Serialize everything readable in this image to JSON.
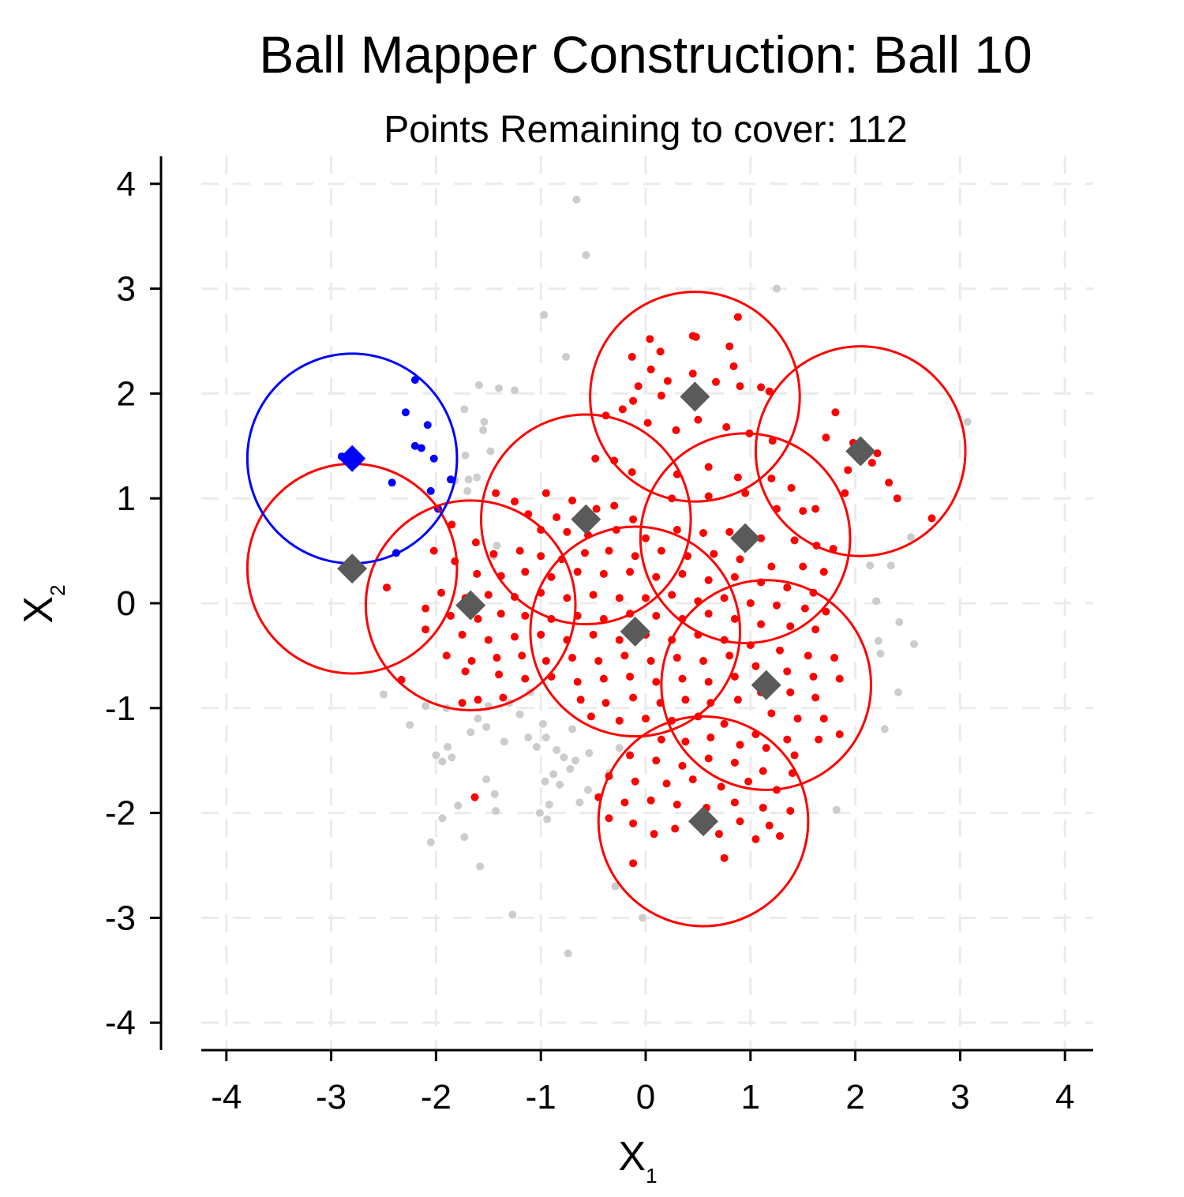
{
  "chart_data": {
    "type": "scatter",
    "title": "Ball Mapper Construction: Ball 10",
    "subtitle": "Points Remaining to cover: 112",
    "xlabel_main": "X",
    "xlabel_sub": "1",
    "ylabel_main": "X",
    "ylabel_sub": "2",
    "xlim": [
      -4.25,
      4.25
    ],
    "ylim": [
      -4.25,
      4.25
    ],
    "xticks": [
      -4,
      -3,
      -2,
      -1,
      0,
      1,
      2,
      3,
      4
    ],
    "yticks": [
      -4,
      -3,
      -2,
      -1,
      0,
      1,
      2,
      3,
      4
    ],
    "xtick_labels": [
      "-4",
      "-3",
      "-2",
      "-1",
      "0",
      "1",
      "2",
      "3",
      "4"
    ],
    "ytick_labels": [
      "-4",
      "-3",
      "-2",
      "-1",
      "0",
      "1",
      "2",
      "3",
      "4"
    ],
    "grid": true,
    "ball_radius": 1.0,
    "colors": {
      "uncovered": "#cccccc",
      "covered": "#ff0000",
      "current": "#0000ff",
      "center": "#5a5a5a",
      "grid": "#ebebeb",
      "axis": "#000000"
    },
    "centers": [
      {
        "x": -0.1,
        "y": -0.27
      },
      {
        "x": -0.57,
        "y": 0.8
      },
      {
        "x": 0.47,
        "y": 1.97
      },
      {
        "x": 0.95,
        "y": 0.62
      },
      {
        "x": 1.15,
        "y": -0.78
      },
      {
        "x": 0.55,
        "y": -2.08
      },
      {
        "x": 2.05,
        "y": 1.45
      },
      {
        "x": -1.67,
        "y": -0.02
      },
      {
        "x": -2.8,
        "y": 0.33
      }
    ],
    "current_ball": {
      "x": -2.8,
      "y": 1.38
    },
    "blue_points": [
      [
        -2.2,
        2.13
      ],
      [
        -2.29,
        1.82
      ],
      [
        -2.08,
        1.7
      ],
      [
        -2.2,
        1.5
      ],
      [
        -2.14,
        1.48
      ],
      [
        -2.02,
        1.38
      ],
      [
        -1.86,
        1.18
      ],
      [
        -2.42,
        1.15
      ],
      [
        -2.05,
        1.07
      ],
      [
        -1.98,
        0.9
      ],
      [
        -2.38,
        0.48
      ],
      [
        -2.9,
        1.4
      ],
      [
        -2.75,
        1.35
      ]
    ],
    "gray_points": [
      [
        -0.66,
        3.85
      ],
      [
        -0.57,
        3.32
      ],
      [
        1.25,
        3.0
      ],
      [
        -0.97,
        2.75
      ],
      [
        -0.76,
        2.35
      ],
      [
        -1.59,
        2.08
      ],
      [
        -1.4,
        2.05
      ],
      [
        -1.25,
        2.03
      ],
      [
        -1.73,
        1.85
      ],
      [
        -1.54,
        1.73
      ],
      [
        -1.72,
        1.41
      ],
      [
        -1.82,
        1.17
      ],
      [
        -1.61,
        1.2
      ],
      [
        -1.7,
        1.07
      ],
      [
        -1.69,
        1.18
      ],
      [
        3.07,
        1.73
      ],
      [
        2.53,
        0.63
      ],
      [
        2.34,
        0.36
      ],
      [
        2.14,
        0.36
      ],
      [
        2.2,
        0.02
      ],
      [
        2.42,
        -0.18
      ],
      [
        2.56,
        -0.39
      ],
      [
        2.22,
        -0.36
      ],
      [
        2.24,
        -0.48
      ],
      [
        2.41,
        -0.85
      ],
      [
        2.28,
        -1.2
      ],
      [
        1.82,
        -1.97
      ],
      [
        -2.5,
        -0.87
      ],
      [
        -2.25,
        -1.16
      ],
      [
        -2.0,
        -1.45
      ],
      [
        -1.89,
        -1.37
      ],
      [
        -1.94,
        -1.51
      ],
      [
        -1.85,
        -1.47
      ],
      [
        -1.67,
        -1.23
      ],
      [
        -1.52,
        -1.18
      ],
      [
        -1.35,
        -1.32
      ],
      [
        -1.2,
        -1.06
      ],
      [
        -1.12,
        -1.28
      ],
      [
        -1.04,
        -1.37
      ],
      [
        -0.95,
        -1.28
      ],
      [
        -0.85,
        -1.4
      ],
      [
        -0.78,
        -1.47
      ],
      [
        -0.67,
        -1.5
      ],
      [
        -0.54,
        -1.43
      ],
      [
        -0.88,
        -1.63
      ],
      [
        -0.96,
        -1.7
      ],
      [
        -0.82,
        -1.73
      ],
      [
        -0.72,
        -1.58
      ],
      [
        -0.55,
        -1.78
      ],
      [
        -0.63,
        -1.9
      ],
      [
        -0.92,
        -1.92
      ],
      [
        -1.52,
        -1.68
      ],
      [
        -1.44,
        -1.82
      ],
      [
        -1.43,
        -1.98
      ],
      [
        -1.79,
        -1.93
      ],
      [
        -1.94,
        -2.05
      ],
      [
        -2.05,
        -2.28
      ],
      [
        -1.73,
        -2.23
      ],
      [
        -1.58,
        -2.51
      ],
      [
        -1.01,
        -2.0
      ],
      [
        -0.94,
        -2.06
      ],
      [
        -1.27,
        -2.97
      ],
      [
        -0.74,
        -3.34
      ],
      [
        -0.29,
        -2.7
      ],
      [
        -0.03,
        -3.0
      ],
      [
        -0.35,
        -1.62
      ],
      [
        -0.25,
        -1.38
      ],
      [
        -1.1,
        -0.85
      ],
      [
        -1.3,
        -0.95
      ],
      [
        -1.5,
        -0.98
      ],
      [
        -1.6,
        -1.1
      ],
      [
        -0.98,
        -1.15
      ],
      [
        -0.7,
        -1.2
      ],
      [
        -1.9,
        -1.0
      ],
      [
        -2.1,
        -0.98
      ],
      [
        -1.45,
        0.45
      ],
      [
        -1.42,
        0.55
      ],
      [
        -1.48,
        1.45
      ],
      [
        -1.55,
        1.65
      ]
    ],
    "red_points": [
      [
        0.04,
        2.52
      ],
      [
        0.45,
        2.55
      ],
      [
        0.48,
        2.54
      ],
      [
        0.88,
        2.73
      ],
      [
        0.8,
        2.45
      ],
      [
        0.45,
        2.19
      ],
      [
        0.14,
        2.4
      ],
      [
        -0.13,
        2.35
      ],
      [
        0.05,
        2.23
      ],
      [
        0.84,
        2.26
      ],
      [
        0.21,
        2.12
      ],
      [
        0.67,
        2.11
      ],
      [
        0.9,
        2.07
      ],
      [
        1.1,
        2.06
      ],
      [
        1.18,
        2.02
      ],
      [
        0.15,
        1.98
      ],
      [
        -0.07,
        2.07
      ],
      [
        -0.12,
        1.93
      ],
      [
        -0.38,
        1.79
      ],
      [
        -0.22,
        1.85
      ],
      [
        0.02,
        1.72
      ],
      [
        0.29,
        1.65
      ],
      [
        0.5,
        1.75
      ],
      [
        0.77,
        1.68
      ],
      [
        0.99,
        1.62
      ],
      [
        1.21,
        1.55
      ],
      [
        -0.48,
        1.38
      ],
      [
        -0.3,
        1.36
      ],
      [
        -0.13,
        1.25
      ],
      [
        0.3,
        1.23
      ],
      [
        0.6,
        1.3
      ],
      [
        0.88,
        1.2
      ],
      [
        1.2,
        1.19
      ],
      [
        1.39,
        1.1
      ],
      [
        -0.95,
        1.05
      ],
      [
        -0.7,
        0.98
      ],
      [
        -0.47,
        0.9
      ],
      [
        -0.3,
        0.93
      ],
      [
        -0.12,
        0.8
      ],
      [
        0.25,
        1.0
      ],
      [
        0.6,
        1.02
      ],
      [
        0.95,
        1.05
      ],
      [
        1.25,
        0.9
      ],
      [
        1.5,
        0.88
      ],
      [
        1.62,
        0.9
      ],
      [
        -1.43,
        1.05
      ],
      [
        -1.25,
        0.97
      ],
      [
        -1.12,
        0.85
      ],
      [
        -0.85,
        0.82
      ],
      [
        -1.0,
        0.7
      ],
      [
        -0.75,
        0.68
      ],
      [
        -0.55,
        0.65
      ],
      [
        -0.28,
        0.7
      ],
      [
        0.0,
        0.62
      ],
      [
        0.3,
        0.7
      ],
      [
        0.55,
        0.67
      ],
      [
        0.8,
        0.68
      ],
      [
        1.1,
        0.62
      ],
      [
        1.42,
        0.6
      ],
      [
        1.63,
        0.55
      ],
      [
        1.79,
        0.52
      ],
      [
        -1.85,
        0.75
      ],
      [
        -1.62,
        0.58
      ],
      [
        -1.45,
        0.47
      ],
      [
        -1.2,
        0.5
      ],
      [
        -1.0,
        0.45
      ],
      [
        -0.8,
        0.42
      ],
      [
        -0.58,
        0.48
      ],
      [
        -0.35,
        0.5
      ],
      [
        -0.1,
        0.45
      ],
      [
        0.15,
        0.5
      ],
      [
        0.4,
        0.45
      ],
      [
        0.65,
        0.47
      ],
      [
        0.9,
        0.42
      ],
      [
        1.2,
        0.35
      ],
      [
        1.5,
        0.35
      ],
      [
        1.7,
        0.3
      ],
      [
        -2.02,
        0.5
      ],
      [
        -1.82,
        0.4
      ],
      [
        -1.61,
        0.28
      ],
      [
        -1.38,
        0.26
      ],
      [
        -1.15,
        0.3
      ],
      [
        -0.9,
        0.25
      ],
      [
        -0.65,
        0.3
      ],
      [
        -0.4,
        0.28
      ],
      [
        -0.15,
        0.3
      ],
      [
        0.1,
        0.25
      ],
      [
        0.35,
        0.28
      ],
      [
        0.6,
        0.22
      ],
      [
        0.85,
        0.25
      ],
      [
        1.1,
        0.2
      ],
      [
        1.35,
        0.15
      ],
      [
        1.6,
        0.1
      ],
      [
        -2.47,
        0.15
      ],
      [
        -1.95,
        0.1
      ],
      [
        -1.72,
        0.05
      ],
      [
        -1.5,
        0.08
      ],
      [
        -1.25,
        0.06
      ],
      [
        -1.0,
        0.1
      ],
      [
        -0.75,
        0.05
      ],
      [
        -0.5,
        0.08
      ],
      [
        -0.25,
        0.05
      ],
      [
        0.0,
        0.05
      ],
      [
        0.25,
        0.08
      ],
      [
        0.5,
        0.02
      ],
      [
        0.75,
        0.05
      ],
      [
        1.0,
        0.0
      ],
      [
        1.25,
        -0.02
      ],
      [
        1.52,
        -0.05
      ],
      [
        1.72,
        -0.08
      ],
      [
        -2.1,
        -0.05
      ],
      [
        -1.86,
        -0.12
      ],
      [
        -1.6,
        -0.15
      ],
      [
        -1.38,
        -0.1
      ],
      [
        -1.15,
        -0.12
      ],
      [
        -0.9,
        -0.15
      ],
      [
        -0.65,
        -0.12
      ],
      [
        -0.4,
        -0.15
      ],
      [
        -0.15,
        -0.1
      ],
      [
        0.1,
        -0.12
      ],
      [
        0.35,
        -0.15
      ],
      [
        0.6,
        -0.1
      ],
      [
        0.85,
        -0.15
      ],
      [
        1.1,
        -0.2
      ],
      [
        1.38,
        -0.22
      ],
      [
        1.62,
        -0.25
      ],
      [
        -2.1,
        -0.25
      ],
      [
        -1.75,
        -0.3
      ],
      [
        -1.5,
        -0.35
      ],
      [
        -1.25,
        -0.32
      ],
      [
        -1.0,
        -0.3
      ],
      [
        -0.75,
        -0.35
      ],
      [
        -0.5,
        -0.3
      ],
      [
        -0.25,
        -0.35
      ],
      [
        0.0,
        -0.3
      ],
      [
        0.25,
        -0.35
      ],
      [
        0.5,
        -0.3
      ],
      [
        0.75,
        -0.35
      ],
      [
        1.0,
        -0.4
      ],
      [
        1.28,
        -0.45
      ],
      [
        1.55,
        -0.5
      ],
      [
        1.8,
        -0.52
      ],
      [
        -1.9,
        -0.5
      ],
      [
        -1.66,
        -0.55
      ],
      [
        -1.42,
        -0.52
      ],
      [
        -1.18,
        -0.5
      ],
      [
        -0.95,
        -0.55
      ],
      [
        -0.7,
        -0.52
      ],
      [
        -0.45,
        -0.55
      ],
      [
        -0.2,
        -0.5
      ],
      [
        0.05,
        -0.55
      ],
      [
        0.3,
        -0.52
      ],
      [
        0.55,
        -0.55
      ],
      [
        0.8,
        -0.5
      ],
      [
        1.05,
        -0.6
      ],
      [
        1.35,
        -0.65
      ],
      [
        1.6,
        -0.7
      ],
      [
        1.85,
        -0.72
      ],
      [
        -1.4,
        -0.68
      ],
      [
        -1.15,
        -0.72
      ],
      [
        -0.9,
        -0.7
      ],
      [
        -0.65,
        -0.75
      ],
      [
        -0.4,
        -0.72
      ],
      [
        -0.15,
        -0.7
      ],
      [
        0.1,
        -0.75
      ],
      [
        0.35,
        -0.72
      ],
      [
        0.6,
        -0.75
      ],
      [
        0.85,
        -0.7
      ],
      [
        1.1,
        -0.85
      ],
      [
        1.38,
        -0.85
      ],
      [
        1.62,
        -0.9
      ],
      [
        -2.33,
        -0.73
      ],
      [
        -1.72,
        -0.65
      ],
      [
        -1.75,
        -0.95
      ],
      [
        -1.6,
        -0.92
      ],
      [
        -1.36,
        -0.9
      ],
      [
        -0.62,
        -0.92
      ],
      [
        -0.38,
        -0.95
      ],
      [
        -0.12,
        -0.9
      ],
      [
        0.14,
        -0.95
      ],
      [
        0.38,
        -0.92
      ],
      [
        0.62,
        -0.95
      ],
      [
        0.88,
        -0.92
      ],
      [
        1.2,
        -1.05
      ],
      [
        1.45,
        -1.1
      ],
      [
        1.7,
        -1.1
      ],
      [
        1.85,
        -1.25
      ],
      [
        -0.52,
        -1.08
      ],
      [
        -0.25,
        -1.12
      ],
      [
        0.0,
        -1.1
      ],
      [
        0.25,
        -1.12
      ],
      [
        0.5,
        -1.08
      ],
      [
        0.75,
        -1.15
      ],
      [
        1.05,
        -1.25
      ],
      [
        1.35,
        -1.3
      ],
      [
        1.65,
        -1.3
      ],
      [
        0.15,
        -1.3
      ],
      [
        0.38,
        -1.32
      ],
      [
        0.62,
        -1.28
      ],
      [
        0.9,
        -1.35
      ],
      [
        1.15,
        -1.38
      ],
      [
        1.42,
        -1.45
      ],
      [
        -0.15,
        -1.45
      ],
      [
        0.1,
        -1.5
      ],
      [
        0.35,
        -1.55
      ],
      [
        0.6,
        -1.48
      ],
      [
        0.85,
        -1.52
      ],
      [
        1.12,
        -1.6
      ],
      [
        1.4,
        -1.62
      ],
      [
        -0.35,
        -1.65
      ],
      [
        -0.1,
        -1.7
      ],
      [
        0.2,
        -1.72
      ],
      [
        0.45,
        -1.68
      ],
      [
        0.72,
        -1.75
      ],
      [
        0.98,
        -1.7
      ],
      [
        1.25,
        -1.78
      ],
      [
        -0.45,
        -1.85
      ],
      [
        -0.2,
        -1.9
      ],
      [
        0.05,
        -1.88
      ],
      [
        0.3,
        -1.92
      ],
      [
        0.58,
        -1.95
      ],
      [
        0.85,
        -1.9
      ],
      [
        1.12,
        -1.95
      ],
      [
        1.38,
        -1.98
      ],
      [
        -0.35,
        -2.05
      ],
      [
        -0.12,
        -2.1
      ],
      [
        0.28,
        -2.15
      ],
      [
        0.7,
        -2.2
      ],
      [
        1.05,
        -2.25
      ],
      [
        1.28,
        -2.22
      ],
      [
        0.08,
        -2.2
      ],
      [
        -0.12,
        -2.48
      ],
      [
        0.75,
        -2.43
      ],
      [
        0.9,
        -2.08
      ],
      [
        1.18,
        -2.12
      ],
      [
        1.72,
        1.58
      ],
      [
        1.81,
        1.82
      ],
      [
        1.98,
        1.53
      ],
      [
        2.16,
        1.34
      ],
      [
        2.21,
        1.43
      ],
      [
        1.93,
        1.27
      ],
      [
        2.32,
        1.15
      ],
      [
        2.4,
        1.0
      ],
      [
        2.73,
        0.81
      ],
      [
        1.9,
        1.05
      ],
      [
        -1.63,
        -1.85
      ]
    ]
  }
}
